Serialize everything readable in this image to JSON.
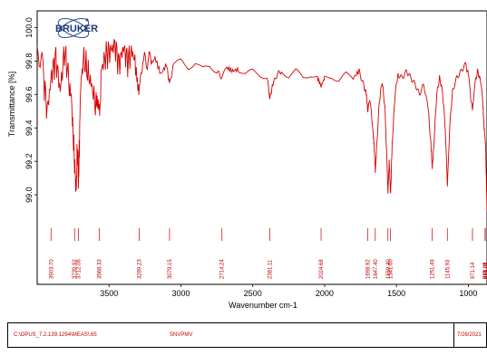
{
  "logo_text": "BRUKER",
  "chart_data": {
    "type": "line",
    "title": "",
    "xlabel": "Wavenumber cm-1",
    "ylabel": "Transmittance [%]",
    "xlim": [
      4000,
      870
    ],
    "x_reversed": true,
    "ylim": [
      98.8,
      100.1
    ],
    "x_ticks": [
      3500,
      3000,
      2500,
      2000,
      1500,
      1000
    ],
    "x_tick_labels": [
      "3500",
      "3000",
      "2500",
      "2000",
      "1500",
      "1000"
    ],
    "y_ticks": [
      99.0,
      99.2,
      99.4,
      99.6,
      99.8,
      100.0
    ],
    "y_tick_labels": [
      "99.0",
      "99.2",
      "99.4",
      "99.6",
      "99.8",
      "100.0"
    ],
    "line_color": "#d40000",
    "series": [
      {
        "values": [
          {
            "x": 4000,
            "y": 99.84
          },
          {
            "x": 3960,
            "y": 99.74
          },
          {
            "x": 3930,
            "y": 99.5
          },
          {
            "x": 3900,
            "y": 99.72
          },
          {
            "x": 3870,
            "y": 99.82
          },
          {
            "x": 3840,
            "y": 99.62
          },
          {
            "x": 3810,
            "y": 99.86
          },
          {
            "x": 3780,
            "y": 99.7
          },
          {
            "x": 3755,
            "y": 99.45
          },
          {
            "x": 3740,
            "y": 99.2
          },
          {
            "x": 3729,
            "y": 99.02
          },
          {
            "x": 3720,
            "y": 99.3
          },
          {
            "x": 3712,
            "y": 99.08
          },
          {
            "x": 3700,
            "y": 99.55
          },
          {
            "x": 3680,
            "y": 99.82
          },
          {
            "x": 3650,
            "y": 99.74
          },
          {
            "x": 3620,
            "y": 99.65
          },
          {
            "x": 3590,
            "y": 99.52
          },
          {
            "x": 3568,
            "y": 99.48
          },
          {
            "x": 3550,
            "y": 99.76
          },
          {
            "x": 3520,
            "y": 99.84
          },
          {
            "x": 3490,
            "y": 99.86
          },
          {
            "x": 3460,
            "y": 99.9
          },
          {
            "x": 3430,
            "y": 99.78
          },
          {
            "x": 3400,
            "y": 99.88
          },
          {
            "x": 3370,
            "y": 99.8
          },
          {
            "x": 3340,
            "y": 99.86
          },
          {
            "x": 3310,
            "y": 99.76
          },
          {
            "x": 3289,
            "y": 99.66
          },
          {
            "x": 3260,
            "y": 99.8
          },
          {
            "x": 3220,
            "y": 99.76
          },
          {
            "x": 3180,
            "y": 99.82
          },
          {
            "x": 3140,
            "y": 99.72
          },
          {
            "x": 3100,
            "y": 99.78
          },
          {
            "x": 3079,
            "y": 99.66
          },
          {
            "x": 3050,
            "y": 99.78
          },
          {
            "x": 3000,
            "y": 99.8
          },
          {
            "x": 2950,
            "y": 99.76
          },
          {
            "x": 2900,
            "y": 99.79
          },
          {
            "x": 2850,
            "y": 99.75
          },
          {
            "x": 2800,
            "y": 99.77
          },
          {
            "x": 2750,
            "y": 99.74
          },
          {
            "x": 2714,
            "y": 99.7
          },
          {
            "x": 2680,
            "y": 99.76
          },
          {
            "x": 2640,
            "y": 99.74
          },
          {
            "x": 2600,
            "y": 99.75
          },
          {
            "x": 2550,
            "y": 99.72
          },
          {
            "x": 2500,
            "y": 99.74
          },
          {
            "x": 2450,
            "y": 99.72
          },
          {
            "x": 2400,
            "y": 99.7
          },
          {
            "x": 2381,
            "y": 99.58
          },
          {
            "x": 2360,
            "y": 99.66
          },
          {
            "x": 2330,
            "y": 99.72
          },
          {
            "x": 2300,
            "y": 99.74
          },
          {
            "x": 2250,
            "y": 99.71
          },
          {
            "x": 2200,
            "y": 99.74
          },
          {
            "x": 2150,
            "y": 99.7
          },
          {
            "x": 2100,
            "y": 99.72
          },
          {
            "x": 2050,
            "y": 99.7
          },
          {
            "x": 2024,
            "y": 99.65
          },
          {
            "x": 2000,
            "y": 99.7
          },
          {
            "x": 1950,
            "y": 99.71
          },
          {
            "x": 1900,
            "y": 99.68
          },
          {
            "x": 1850,
            "y": 99.72
          },
          {
            "x": 1800,
            "y": 99.7
          },
          {
            "x": 1760,
            "y": 99.74
          },
          {
            "x": 1730,
            "y": 99.66
          },
          {
            "x": 1710,
            "y": 99.6
          },
          {
            "x": 1699,
            "y": 99.5
          },
          {
            "x": 1685,
            "y": 99.58
          },
          {
            "x": 1665,
            "y": 99.4
          },
          {
            "x": 1656,
            "y": 99.3
          },
          {
            "x": 1647,
            "y": 99.14
          },
          {
            "x": 1640,
            "y": 99.25
          },
          {
            "x": 1620,
            "y": 99.55
          },
          {
            "x": 1600,
            "y": 99.68
          },
          {
            "x": 1580,
            "y": 99.52
          },
          {
            "x": 1559,
            "y": 99.02
          },
          {
            "x": 1550,
            "y": 99.2
          },
          {
            "x": 1541,
            "y": 99.0
          },
          {
            "x": 1530,
            "y": 99.3
          },
          {
            "x": 1510,
            "y": 99.6
          },
          {
            "x": 1490,
            "y": 99.72
          },
          {
            "x": 1460,
            "y": 99.7
          },
          {
            "x": 1430,
            "y": 99.74
          },
          {
            "x": 1400,
            "y": 99.7
          },
          {
            "x": 1370,
            "y": 99.66
          },
          {
            "x": 1340,
            "y": 99.6
          },
          {
            "x": 1310,
            "y": 99.66
          },
          {
            "x": 1280,
            "y": 99.52
          },
          {
            "x": 1260,
            "y": 99.3
          },
          {
            "x": 1251,
            "y": 99.16
          },
          {
            "x": 1240,
            "y": 99.3
          },
          {
            "x": 1220,
            "y": 99.6
          },
          {
            "x": 1200,
            "y": 99.7
          },
          {
            "x": 1180,
            "y": 99.62
          },
          {
            "x": 1160,
            "y": 99.4
          },
          {
            "x": 1146,
            "y": 99.05
          },
          {
            "x": 1130,
            "y": 99.4
          },
          {
            "x": 1110,
            "y": 99.62
          },
          {
            "x": 1080,
            "y": 99.7
          },
          {
            "x": 1050,
            "y": 99.74
          },
          {
            "x": 1020,
            "y": 99.78
          },
          {
            "x": 1000,
            "y": 99.72
          },
          {
            "x": 985,
            "y": 99.6
          },
          {
            "x": 971,
            "y": 99.5
          },
          {
            "x": 955,
            "y": 99.66
          },
          {
            "x": 935,
            "y": 99.74
          },
          {
            "x": 915,
            "y": 99.68
          },
          {
            "x": 900,
            "y": 99.56
          },
          {
            "x": 890,
            "y": 99.4
          },
          {
            "x": 880,
            "y": 99.3
          },
          {
            "x": 870,
            "y": 98.9
          }
        ]
      }
    ],
    "peak_markers": [
      {
        "x": 3903.7,
        "label": "3903.70"
      },
      {
        "x": 3739.92,
        "label": "3739.92"
      },
      {
        "x": 3712.06,
        "label": "3712.06"
      },
      {
        "x": 3568.33,
        "label": "3568.33"
      },
      {
        "x": 3289.23,
        "label": "3289.23"
      },
      {
        "x": 3079.15,
        "label": "3079.15"
      },
      {
        "x": 2714.24,
        "label": "2714.24"
      },
      {
        "x": 2381.11,
        "label": "2381.11"
      },
      {
        "x": 2024.68,
        "label": "2024.68"
      },
      {
        "x": 1698.92,
        "label": "1698.92"
      },
      {
        "x": 1647.4,
        "label": "1647.40"
      },
      {
        "x": 1559.4,
        "label": "1559.40"
      },
      {
        "x": 1541.6,
        "label": "1541.60"
      },
      {
        "x": 1251.49,
        "label": "1251.49"
      },
      {
        "x": 1145.93,
        "label": "1145.93"
      },
      {
        "x": 971.14,
        "label": "971.14"
      },
      {
        "x": 871.22,
        "label": "871.22"
      },
      {
        "x": 746.09,
        "label": "746.09"
      },
      {
        "x": 677.07,
        "label": "677.07"
      },
      {
        "x": 619.01,
        "label": "619.01"
      }
    ]
  },
  "footer": {
    "path": "C:\\OPUS_7.2.139.1294\\MEAS\\.65",
    "sample": "SNVPMV",
    "date": "7/26/2021"
  }
}
